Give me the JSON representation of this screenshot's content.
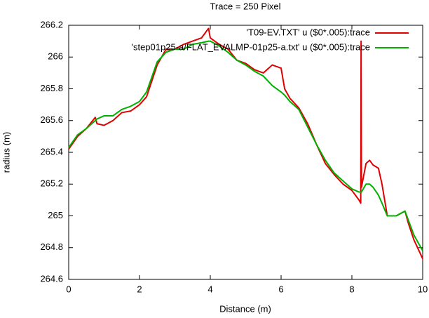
{
  "chart_data": {
    "type": "line",
    "title": "Trace = 250 Pixel",
    "x_label": "Distance (m)",
    "y_label": "radius (m)",
    "x": [
      0,
      0.25,
      0.5,
      0.75,
      0.8,
      1,
      1.25,
      1.5,
      1.75,
      2,
      2.2,
      2.5,
      2.75,
      3,
      3.25,
      3.5,
      3.75,
      3.95,
      4,
      4.25,
      4.5,
      4.75,
      5,
      5.25,
      5.5,
      5.75,
      6,
      6.1,
      6.25,
      6.5,
      6.75,
      7,
      7.25,
      7.5,
      7.75,
      8,
      8.2,
      8.25,
      8.26,
      8.27,
      8.4,
      8.5,
      8.6,
      8.75,
      8.85,
      9,
      9.25,
      9.5,
      9.6,
      9.75,
      10
    ],
    "series": [
      {
        "name": "'T09-EV.TXT' u ($0*.005):trace",
        "color": "#e00000",
        "values": [
          265.42,
          265.5,
          265.55,
          265.62,
          265.58,
          265.57,
          265.6,
          265.65,
          265.66,
          265.7,
          265.75,
          265.95,
          266.05,
          266.05,
          266.08,
          266.1,
          266.12,
          266.18,
          266.12,
          266.08,
          266.05,
          265.98,
          265.96,
          265.92,
          265.9,
          265.95,
          265.93,
          265.8,
          265.74,
          265.68,
          265.58,
          265.45,
          265.33,
          265.26,
          265.2,
          265.16,
          265.1,
          265.08,
          266.1,
          265.18,
          265.33,
          265.35,
          265.32,
          265.3,
          265.2,
          265.0,
          265.0,
          265.03,
          264.95,
          264.85,
          264.73
        ]
      },
      {
        "name": "'step01p25-a/FLAT_EVALMP-01p25-a.txt' u ($0*.005):trace",
        "color": "#00b000",
        "values": [
          265.43,
          265.51,
          265.55,
          265.6,
          265.61,
          265.63,
          265.63,
          265.67,
          265.69,
          265.72,
          265.78,
          265.97,
          266.03,
          266.05,
          266.05,
          266.08,
          266.09,
          266.1,
          266.1,
          266.07,
          266.03,
          265.98,
          265.95,
          265.91,
          265.88,
          265.82,
          265.78,
          265.76,
          265.72,
          265.67,
          265.56,
          265.45,
          265.35,
          265.27,
          265.22,
          265.17,
          265.15,
          265.15,
          265.15,
          265.15,
          265.2,
          265.2,
          265.18,
          265.13,
          265.08,
          265.0,
          265.0,
          265.03,
          264.97,
          264.88,
          264.78
        ]
      }
    ],
    "xlim": [
      0,
      10
    ],
    "xticks": [
      0,
      2,
      4,
      6,
      8,
      10
    ],
    "ylim": [
      264.6,
      266.2
    ],
    "yticks": [
      264.6,
      264.8,
      265,
      265.2,
      265.4,
      265.6,
      265.8,
      266,
      266.2
    ],
    "legend": "top-right",
    "grid": false
  }
}
